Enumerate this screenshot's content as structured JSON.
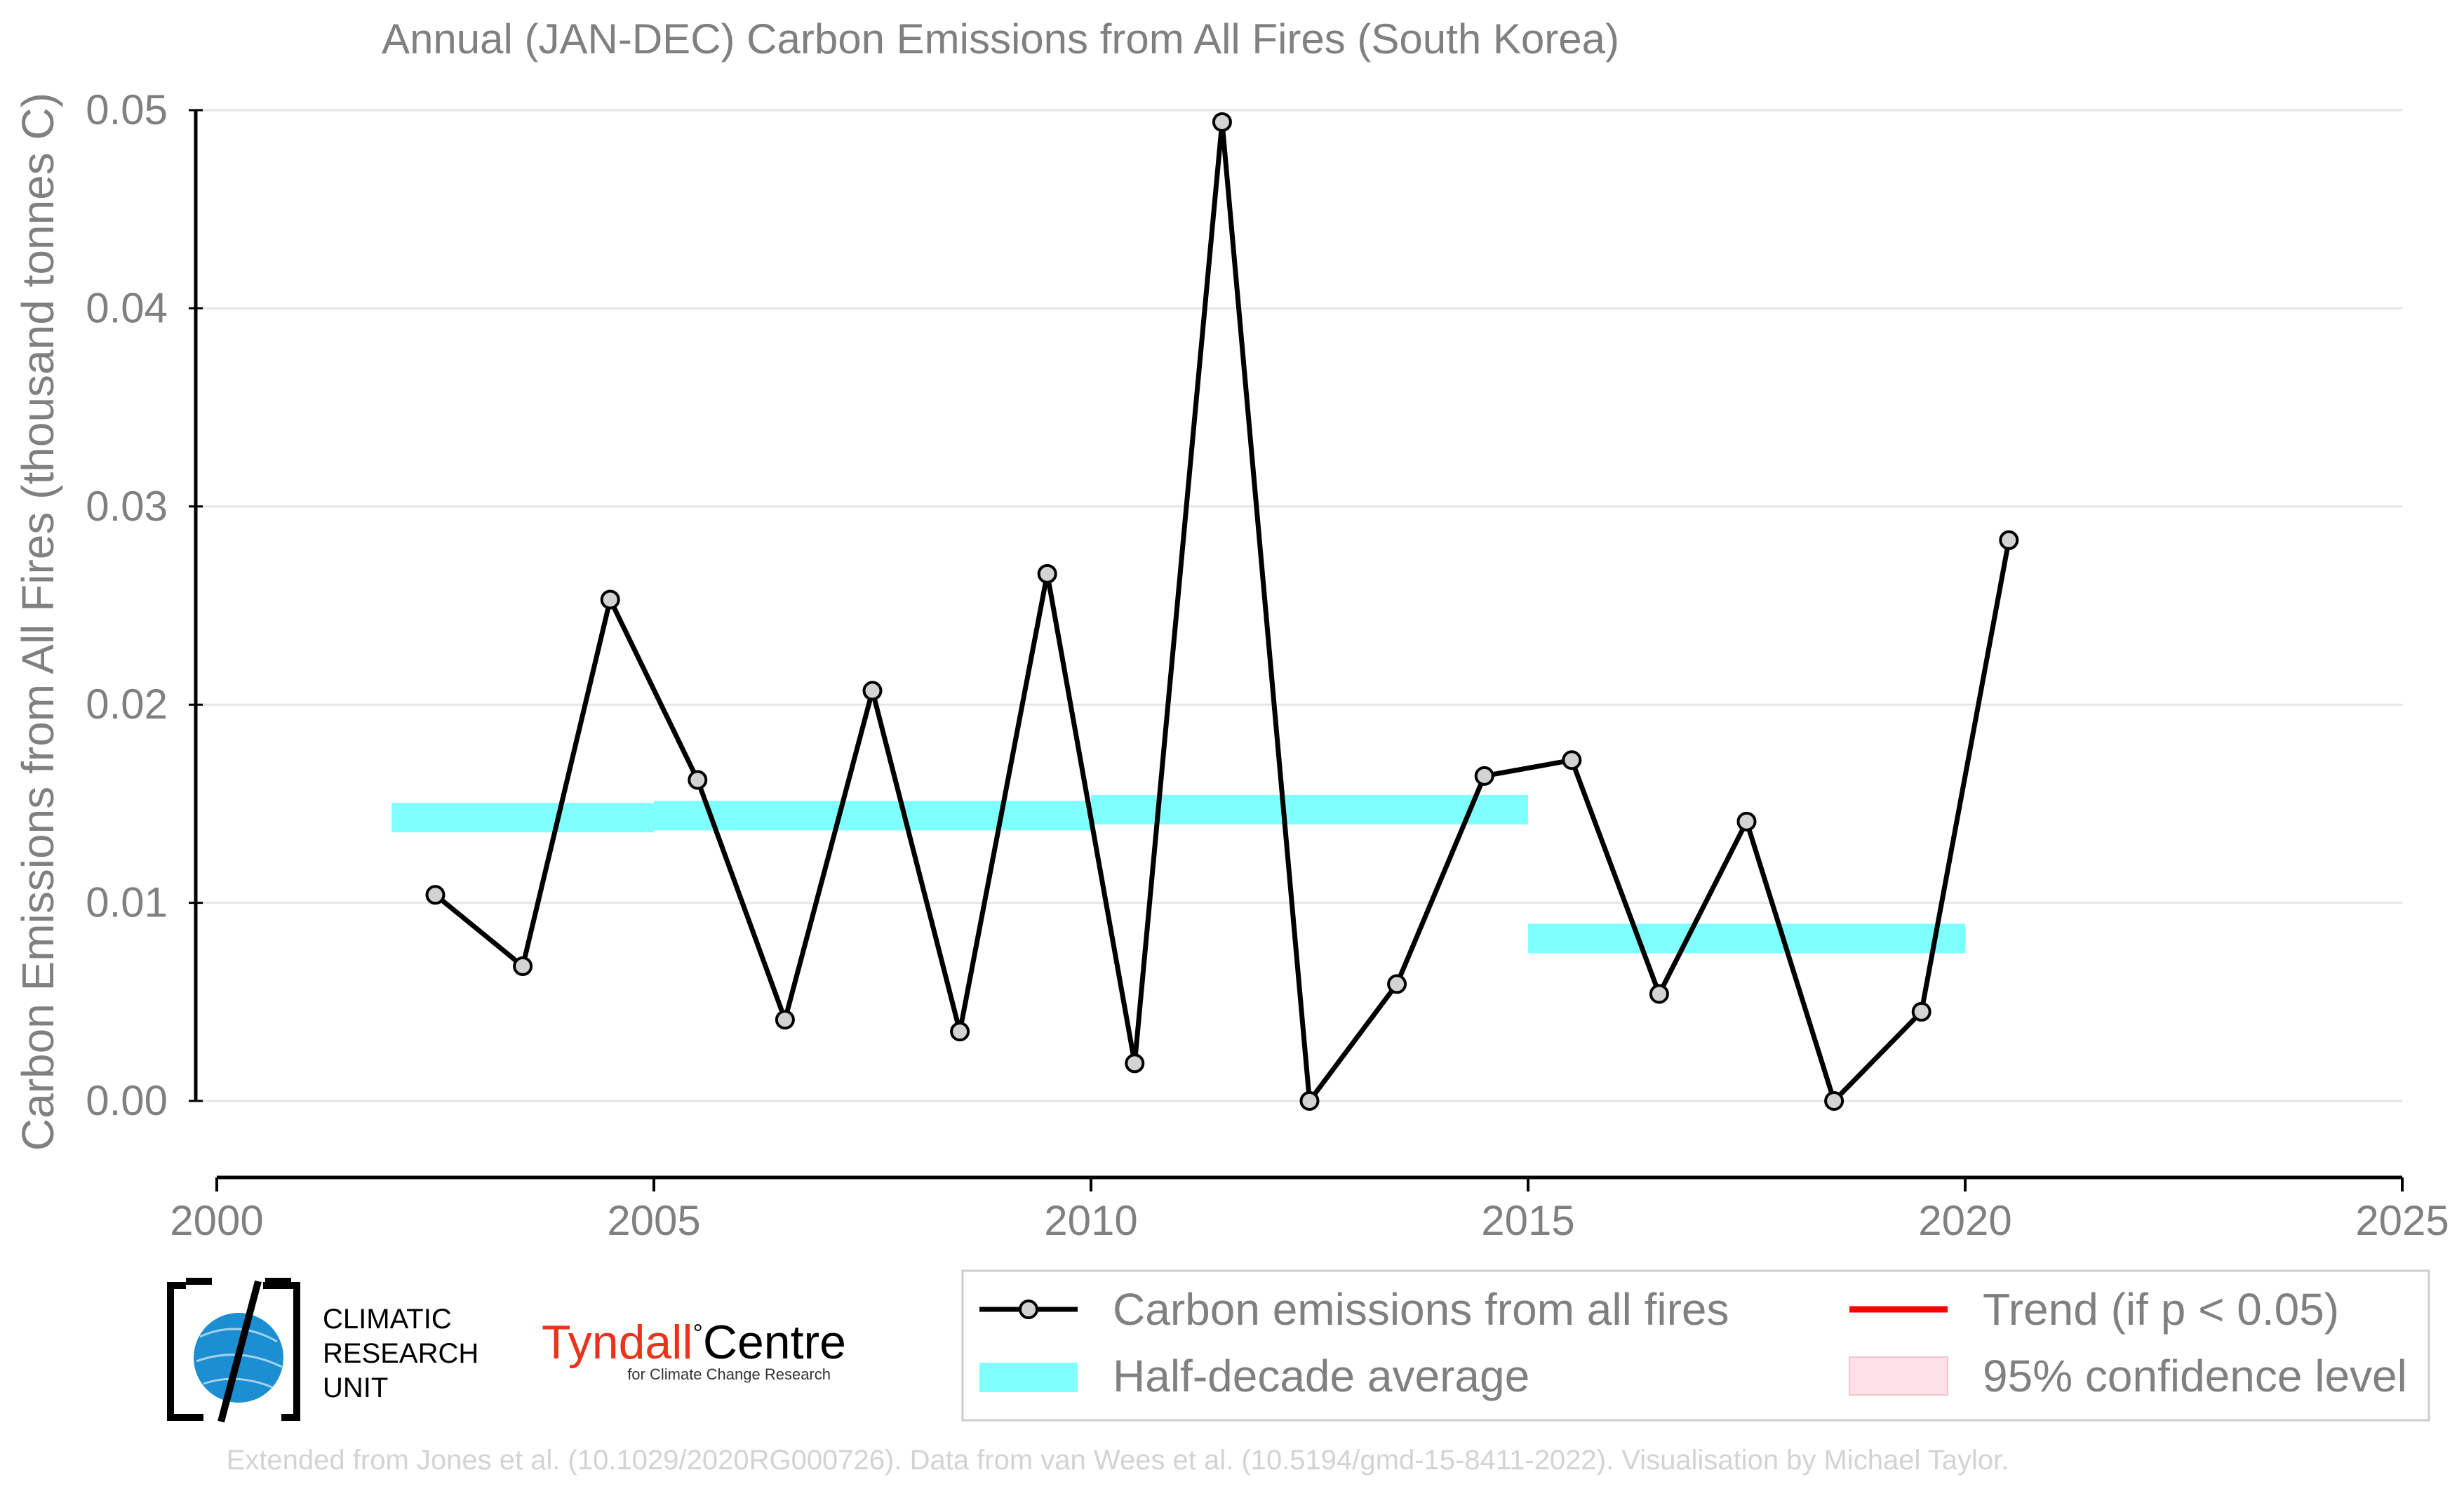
{
  "chart_data": {
    "type": "line",
    "title": "Annual (JAN-DEC) Carbon Emissions from All Fires (South Korea)",
    "ylabel": "Carbon Emissions from All Fires (thousand tonnes C)",
    "xlabel": "",
    "xlim": [
      2000,
      2025
    ],
    "ylim": [
      0,
      0.05
    ],
    "x_ticks": [
      2000,
      2005,
      2010,
      2015,
      2020,
      2025
    ],
    "y_ticks": [
      "0.00",
      "0.01",
      "0.02",
      "0.03",
      "0.04",
      "0.05"
    ],
    "grid": "horizontal",
    "legend_position": "bottom-right",
    "series": [
      {
        "name": "Carbon emissions from all fires",
        "color": "#000000",
        "marker_fill": "#d3d3d3",
        "x": [
          2002.5,
          2003.5,
          2004.5,
          2005.5,
          2006.5,
          2007.5,
          2008.5,
          2009.5,
          2010.5,
          2011.5,
          2012.5,
          2013.5,
          2014.5,
          2015.5,
          2016.5,
          2017.5,
          2018.5,
          2019.5,
          2020.5
        ],
        "y": [
          0.0104,
          0.0068,
          0.0253,
          0.0162,
          0.0041,
          0.0207,
          0.0035,
          0.0266,
          0.0019,
          0.0494,
          0.0,
          0.0059,
          0.0164,
          0.0172,
          0.0054,
          0.0141,
          0.0,
          0.0045,
          0.0283
        ]
      },
      {
        "name": "Half-decade average",
        "color": "#80ffff",
        "segments": [
          {
            "x_start": 2002,
            "x_end": 2005,
            "y": 0.0143
          },
          {
            "x_start": 2005,
            "x_end": 2010,
            "y": 0.0144
          },
          {
            "x_start": 2010,
            "x_end": 2015,
            "y": 0.0147
          },
          {
            "x_start": 2015,
            "x_end": 2020,
            "y": 0.0082
          }
        ]
      }
    ],
    "legend": [
      {
        "label": "Carbon emissions from all fires",
        "swatch": "line-marker",
        "color": "#000000"
      },
      {
        "label": "Trend (if p < 0.05)",
        "swatch": "line",
        "color": "#ff0000"
      },
      {
        "label": "Half-decade average",
        "swatch": "band",
        "color": "#80ffff"
      },
      {
        "label": "95% confidence level",
        "swatch": "box",
        "color": "#ffe0e6"
      }
    ]
  },
  "logos": {
    "cru_lines": [
      "CLIMATIC",
      "RESEARCH",
      "UNIT"
    ],
    "tyndall_name": "Tyndall",
    "tyndall_degree": "°",
    "tyndall_centre": "Centre",
    "tyndall_sub": "for Climate Change Research",
    "tyndall_color": "#e8341c"
  },
  "footer": "Extended from Jones et al. (10.1029/2020RG000726). Data from van Wees et al. (10.5194/gmd-15-8411-2022). Visualisation by Michael Taylor."
}
